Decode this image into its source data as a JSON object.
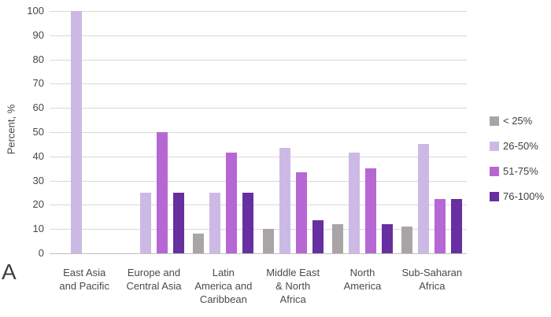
{
  "panel_label": "A",
  "chart_data": {
    "type": "bar",
    "title": "",
    "xlabel": "",
    "ylabel": "Percent, %",
    "ylim": [
      0,
      100
    ],
    "ytick_step": 10,
    "grid": true,
    "legend_position": "right",
    "categories": [
      "East Asia and Pacific",
      "Europe and Central Asia",
      "Latin America and Caribbean",
      "Middle East & North Africa",
      "North America",
      "Sub-Saharan Africa"
    ],
    "category_label_lines": [
      [
        "East Asia",
        "and Pacific"
      ],
      [
        "Europe and",
        "Central Asia"
      ],
      [
        "Latin",
        "America and",
        "Caribbean"
      ],
      [
        "Middle East",
        "& North",
        "Africa"
      ],
      [
        "North",
        "America"
      ],
      [
        "Sub-Saharan",
        "Africa"
      ]
    ],
    "series": [
      {
        "name": "< 25%",
        "color": "#a9a5a6",
        "values": [
          0,
          0,
          8,
          10,
          12,
          11
        ]
      },
      {
        "name": "26-50%",
        "color": "#cdb9e5",
        "values": [
          100,
          25,
          25,
          43.5,
          41.5,
          45
        ]
      },
      {
        "name": "51-75%",
        "color": "#b767d3",
        "values": [
          0,
          50,
          41.5,
          33.5,
          35,
          22.5
        ]
      },
      {
        "name": "76-100%",
        "color": "#672f9f",
        "values": [
          0,
          25,
          25,
          13.5,
          12,
          22.5
        ]
      }
    ]
  }
}
